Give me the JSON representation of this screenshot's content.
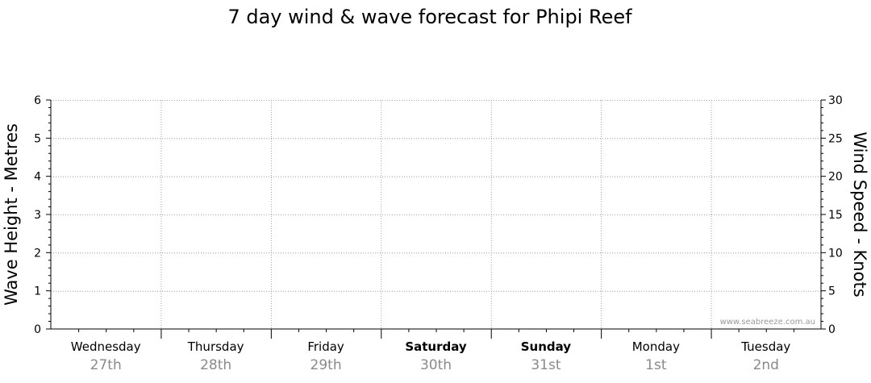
{
  "chart_data": {
    "type": "line",
    "title": "7 day wind & wave forecast for Phipi Reef",
    "ylabel_left": "Wave Height - Metres",
    "ylabel_right": "Wind Speed - Knots",
    "ylim_left": [
      0,
      6
    ],
    "ylim_right": [
      0,
      30
    ],
    "yticks_left": [
      "0",
      "1",
      "2",
      "3",
      "4",
      "5",
      "6"
    ],
    "yticks_right": [
      "0",
      "5",
      "10",
      "15",
      "20",
      "25",
      "30"
    ],
    "grid": true,
    "days": [
      {
        "name": "Wednesday",
        "date": "27th",
        "bold": false
      },
      {
        "name": "Thursday",
        "date": "28th",
        "bold": false
      },
      {
        "name": "Friday",
        "date": "29th",
        "bold": false
      },
      {
        "name": "Saturday",
        "date": "30th",
        "bold": true
      },
      {
        "name": "Sunday",
        "date": "31st",
        "bold": true
      },
      {
        "name": "Monday",
        "date": "1st",
        "bold": false
      },
      {
        "name": "Tuesday",
        "date": "2nd",
        "bold": false
      }
    ],
    "series": []
  },
  "watermark": "www.seabreeze.com.au"
}
